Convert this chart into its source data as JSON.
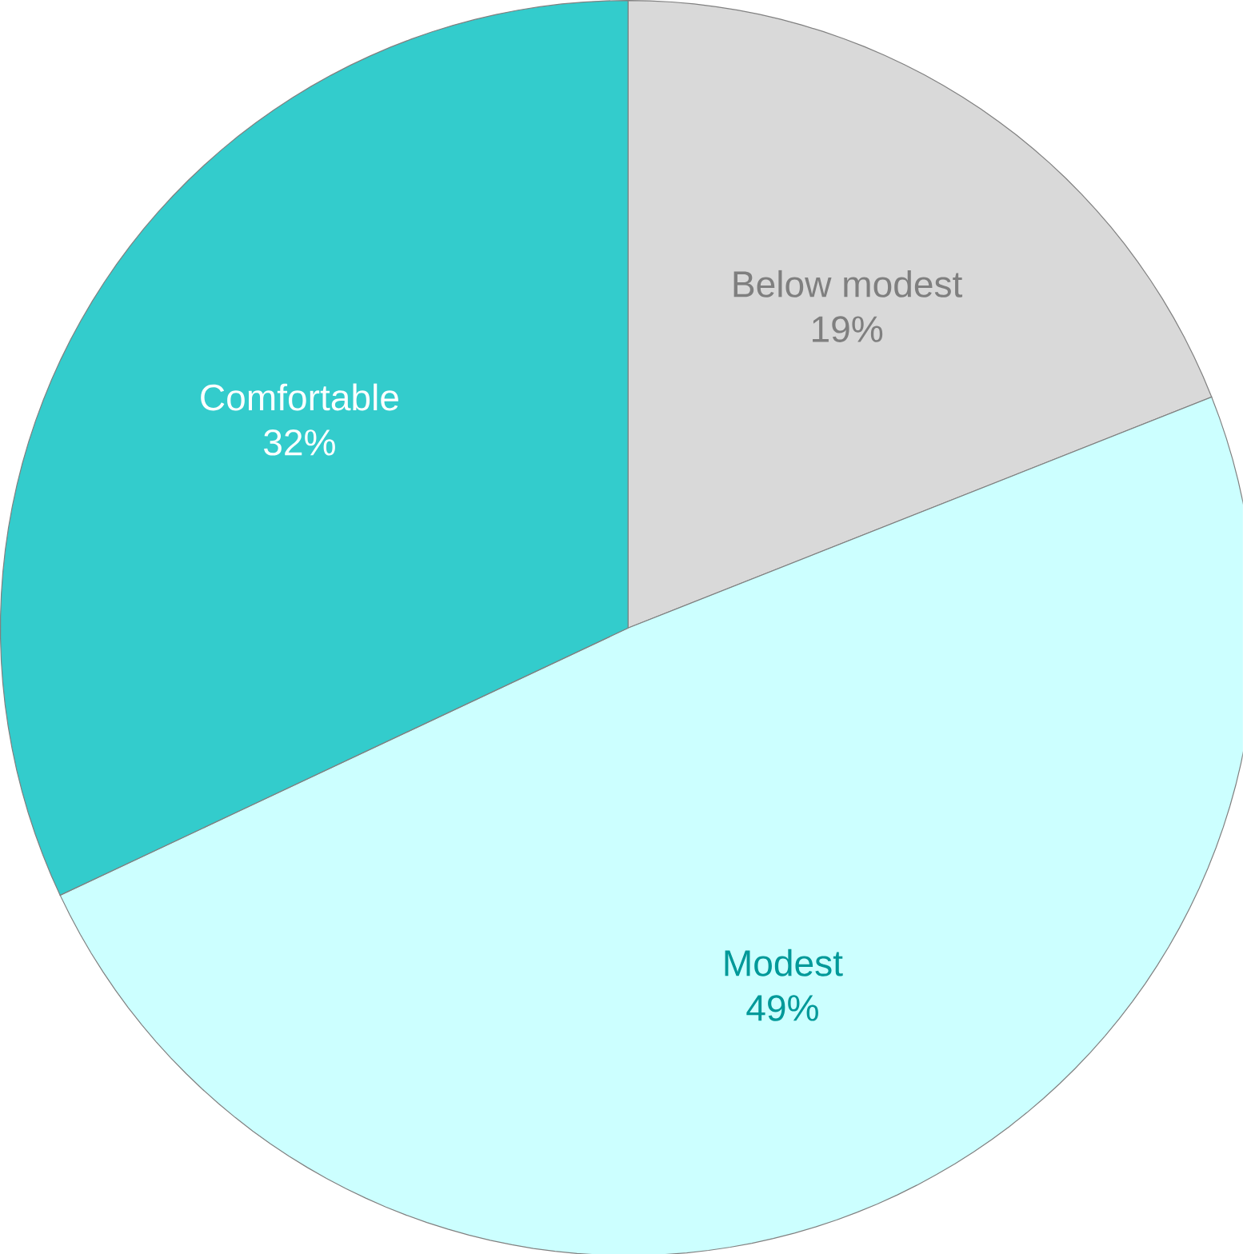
{
  "chart_data": {
    "type": "pie",
    "categories": [
      "Below modest",
      "Modest",
      "Comfortable"
    ],
    "values": [
      19,
      49,
      32
    ],
    "colors": [
      "#d9d9d9",
      "#ccffff",
      "#33cccc"
    ],
    "data_labels": true,
    "value_labels": [
      "19%",
      "49%",
      "32%"
    ]
  }
}
